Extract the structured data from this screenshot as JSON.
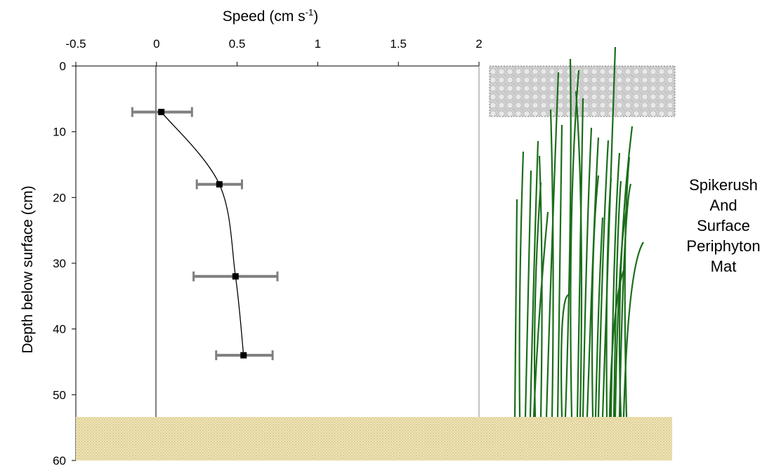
{
  "chart_data": {
    "type": "scatter",
    "xlabel": "Speed (cm s",
    "xlabel_sup": "-1",
    "xlabel_close": ")",
    "ylabel": "Depth below surface (cm)",
    "xlim": [
      -0.5,
      2
    ],
    "ylim": [
      0,
      60
    ],
    "y_inverted": true,
    "x_axis_position": "top",
    "x_ticks": [
      "-0.5",
      "0",
      "0.5",
      "1",
      "1.5",
      "2"
    ],
    "y_ticks": [
      "0",
      "10",
      "20",
      "30",
      "40",
      "50",
      "60"
    ],
    "series": [
      {
        "points": [
          {
            "speed": 0.03,
            "depth": 7,
            "error_low": -0.15,
            "error_high": 0.22
          },
          {
            "speed": 0.39,
            "depth": 18,
            "error_low": 0.25,
            "error_high": 0.53
          },
          {
            "speed": 0.49,
            "depth": 32,
            "error_low": 0.23,
            "error_high": 0.75
          },
          {
            "speed": 0.54,
            "depth": 44,
            "error_low": 0.37,
            "error_high": 0.72
          }
        ]
      }
    ],
    "zones": [
      {
        "name": "surface-periphyton-mat",
        "depth_range": [
          0,
          7.5
        ],
        "color": "#c8c8c8"
      },
      {
        "name": "sediment",
        "depth_range": [
          53.5,
          60
        ],
        "color": "#e6d7a3"
      }
    ],
    "side_label_lines": [
      "Spikerush",
      "And",
      "Surface",
      "Periphyton",
      "Mat"
    ],
    "colors": {
      "marker": "#000000",
      "line": "#000000",
      "error_bar": "#7f7f7f",
      "spikerush": "#1a6e1a",
      "sediment_dot": "#c9b46a"
    }
  }
}
